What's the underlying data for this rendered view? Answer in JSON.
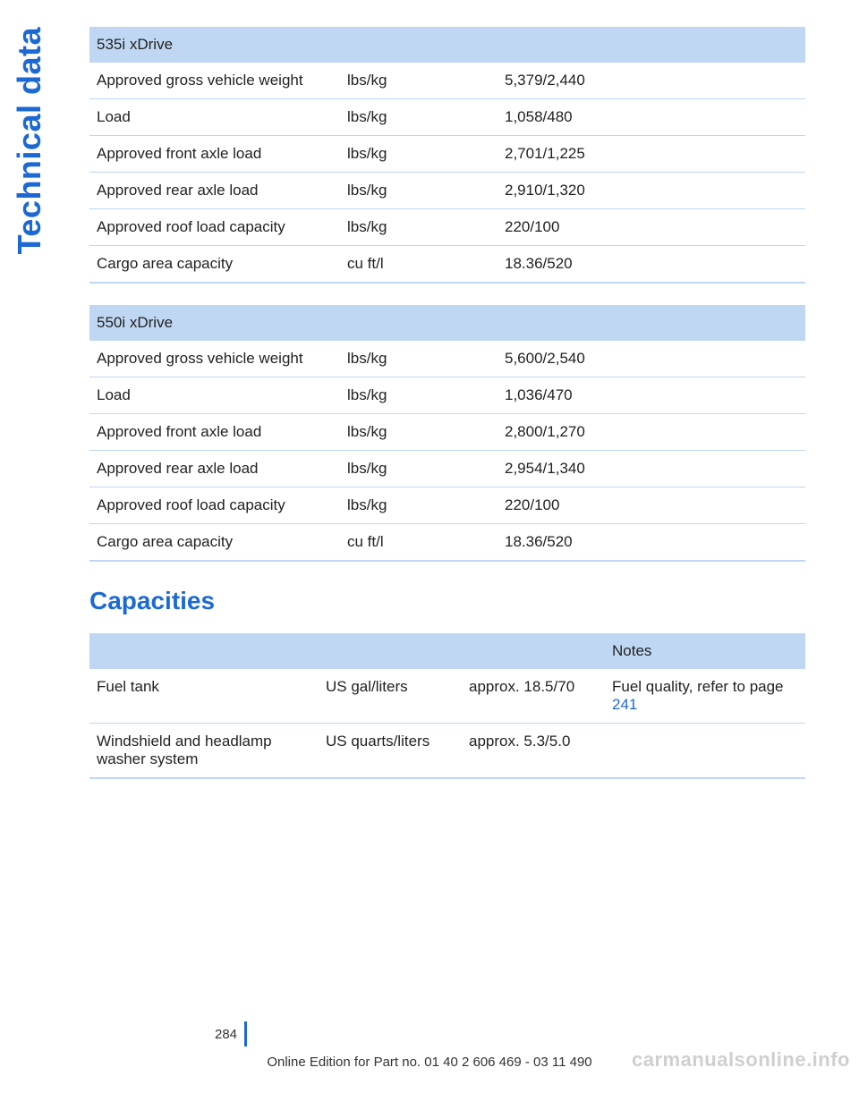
{
  "sideLabel": "Technical data",
  "tables": [
    {
      "title": "535i xDrive",
      "rows": [
        {
          "label": "Approved gross vehicle weight",
          "unit": "lbs/kg",
          "value": "5,379/2,440"
        },
        {
          "label": "Load",
          "unit": "lbs/kg",
          "value": "1,058/480"
        },
        {
          "label": "Approved front axle load",
          "unit": "lbs/kg",
          "value": "2,701/1,225"
        },
        {
          "label": "Approved rear axle load",
          "unit": "lbs/kg",
          "value": "2,910/1,320"
        },
        {
          "label": "Approved roof load capacity",
          "unit": "lbs/kg",
          "value": "220/100"
        },
        {
          "label": "Cargo area capacity",
          "unit": "cu ft/l",
          "value": "18.36/520"
        }
      ]
    },
    {
      "title": "550i xDrive",
      "rows": [
        {
          "label": "Approved gross vehicle weight",
          "unit": "lbs/kg",
          "value": "5,600/2,540"
        },
        {
          "label": "Load",
          "unit": "lbs/kg",
          "value": "1,036/470"
        },
        {
          "label": "Approved front axle load",
          "unit": "lbs/kg",
          "value": "2,800/1,270"
        },
        {
          "label": "Approved rear axle load",
          "unit": "lbs/kg",
          "value": "2,954/1,340"
        },
        {
          "label": "Approved roof load capacity",
          "unit": "lbs/kg",
          "value": "220/100"
        },
        {
          "label": "Cargo area capacity",
          "unit": "cu ft/l",
          "value": "18.36/520"
        }
      ]
    }
  ],
  "sectionTitle": "Capacities",
  "capacities": {
    "headerNotes": "Notes",
    "rows": [
      {
        "label": "Fuel tank",
        "unit": "US gal/liters",
        "value": "approx. 18.5/70",
        "noteText": "Fuel quality, refer to page ",
        "noteLink": "241"
      },
      {
        "label": "Windshield and headlamp washer system",
        "unit": "US quarts/liters",
        "value": "approx. 5.3/5.0",
        "noteText": "",
        "noteLink": ""
      }
    ]
  },
  "pageNumber": "284",
  "footerText": "Online Edition for Part no. 01 40 2 606 469 - 03 11 490",
  "watermark": "carmanualsonline.info",
  "colors": {
    "accent": "#1c69d4",
    "headerBg": "#bfd7f2",
    "text": "#222222",
    "watermark": "#cfcfcf",
    "background": "#ffffff"
  },
  "typography": {
    "sideLabel_fontsize": 36,
    "sectionTitle_fontsize": 28,
    "body_fontsize": 17,
    "footer_fontsize": 15
  }
}
